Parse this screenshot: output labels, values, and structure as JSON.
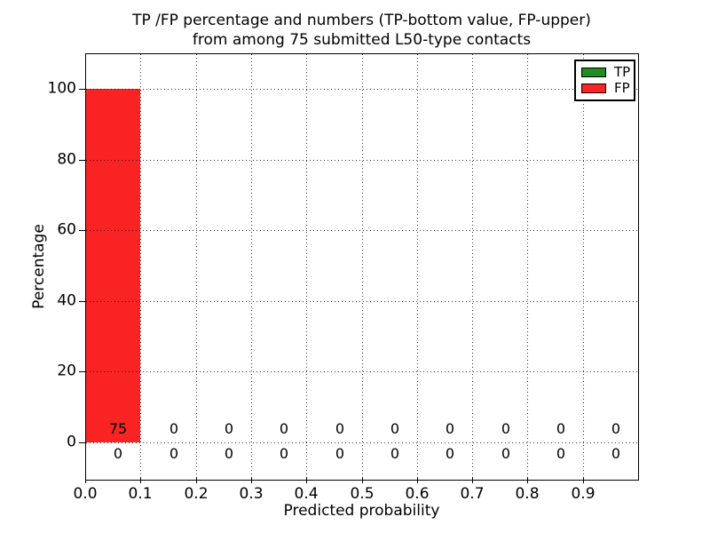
{
  "title": {
    "line1": "TP /FP percentage and numbers (TP-bottom value, FP-upper)",
    "line2": "from among 75 submitted L50-type contacts"
  },
  "axes": {
    "x": {
      "label": "Predicted probability",
      "ticks": [
        "0.0",
        "0.1",
        "0.2",
        "0.3",
        "0.4",
        "0.5",
        "0.6",
        "0.7",
        "0.8",
        "0.9"
      ]
    },
    "y": {
      "label": "Percentage",
      "ticks": [
        "100",
        "80",
        "60",
        "40",
        "20",
        "0"
      ]
    }
  },
  "legend": {
    "items": [
      {
        "label": "TP",
        "color": "#228b22"
      },
      {
        "label": "FP",
        "color": "#fa2323"
      }
    ]
  },
  "annotations": {
    "fp_counts": [
      "75",
      "0",
      "0",
      "0",
      "0",
      "0",
      "0",
      "0",
      "0",
      "0"
    ],
    "tp_counts": [
      "0",
      "0",
      "0",
      "0",
      "0",
      "0",
      "0",
      "0",
      "0",
      "0"
    ]
  },
  "chart_data": {
    "type": "bar",
    "stacked": true,
    "title": "TP /FP percentage and numbers (TP-bottom value, FP-upper) from among 75 submitted L50-type contacts",
    "xlabel": "Predicted probability",
    "ylabel": "Percentage",
    "bin_edges": [
      0.0,
      0.1,
      0.2,
      0.3,
      0.4,
      0.5,
      0.6,
      0.7,
      0.8,
      0.9,
      1.0
    ],
    "categories": [
      "0.0-0.1",
      "0.1-0.2",
      "0.2-0.3",
      "0.3-0.4",
      "0.4-0.5",
      "0.5-0.6",
      "0.6-0.7",
      "0.7-0.8",
      "0.8-0.9",
      "0.9-1.0"
    ],
    "series": [
      {
        "name": "TP",
        "color": "#228b22",
        "percent": [
          0,
          0,
          0,
          0,
          0,
          0,
          0,
          0,
          0,
          0
        ],
        "counts": [
          0,
          0,
          0,
          0,
          0,
          0,
          0,
          0,
          0,
          0
        ]
      },
      {
        "name": "FP",
        "color": "#fa2323",
        "percent": [
          100,
          0,
          0,
          0,
          0,
          0,
          0,
          0,
          0,
          0
        ],
        "counts": [
          75,
          0,
          0,
          0,
          0,
          0,
          0,
          0,
          0,
          0
        ]
      }
    ],
    "total_contacts": 75,
    "xlim": [
      0.0,
      1.0
    ],
    "ylim": [
      -10.5,
      110.5
    ],
    "grid": true,
    "grid_style": "dotted",
    "legend_position": "upper right"
  }
}
